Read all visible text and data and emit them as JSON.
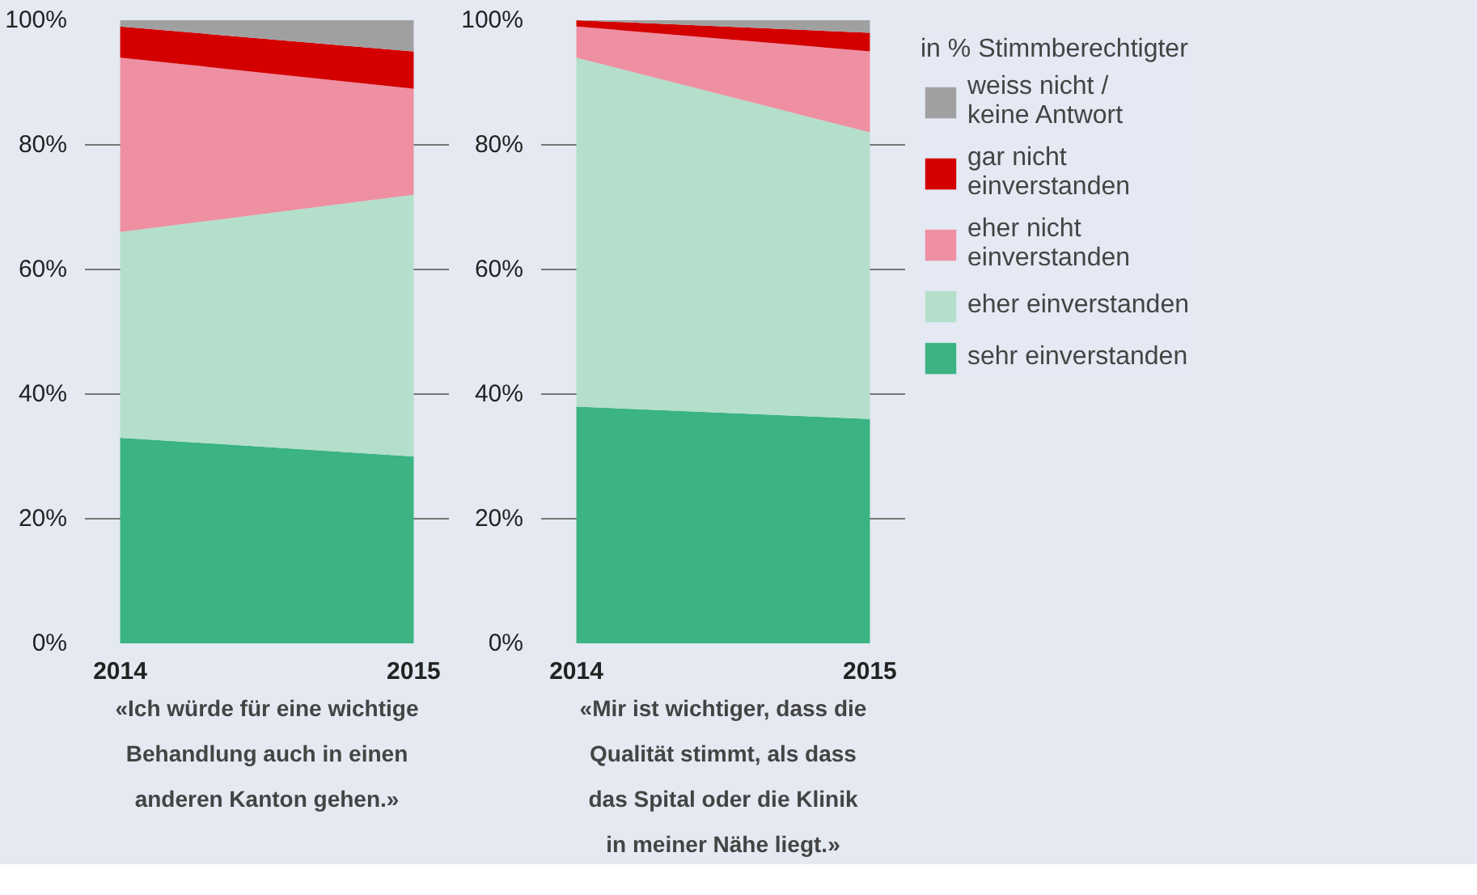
{
  "chart_data": [
    {
      "type": "area",
      "stacked": true,
      "categories": [
        "2014",
        "2015"
      ],
      "ylim": [
        0,
        100
      ],
      "yticks": [
        {
          "value": 0,
          "label": "0%"
        },
        {
          "value": 20,
          "label": "20%"
        },
        {
          "value": 40,
          "label": "40%"
        },
        {
          "value": 60,
          "label": "60%"
        },
        {
          "value": 80,
          "label": "80%"
        },
        {
          "value": 100,
          "label": "100%"
        }
      ],
      "grid": "y",
      "legend": false,
      "series": [
        {
          "color": "#3bb383",
          "values": [
            33,
            30
          ]
        },
        {
          "color": "#b3dfcb",
          "values": [
            33,
            42
          ]
        },
        {
          "color": "#ee8fa2",
          "values": [
            28,
            17
          ]
        },
        {
          "color": "#d40000",
          "values": [
            5,
            6
          ]
        },
        {
          "color": "#a0a0a0",
          "values": [
            1,
            5
          ]
        }
      ],
      "annotations": [
        "«Ich würde für eine wichtige Behandlung auch in einen anderen Kanton gehen.»"
      ]
    },
    {
      "type": "area",
      "stacked": true,
      "categories": [
        "2014",
        "2015"
      ],
      "ylim": [
        0,
        100
      ],
      "yticks": [
        {
          "value": 0,
          "label": "0%"
        },
        {
          "value": 20,
          "label": "20%"
        },
        {
          "value": 40,
          "label": "40%"
        },
        {
          "value": 60,
          "label": "60%"
        },
        {
          "value": 80,
          "label": "80%"
        },
        {
          "value": 100,
          "label": "100%"
        }
      ],
      "grid": "y",
      "legend": "right",
      "legend_title": "in % Stimmberechtigter",
      "series": [
        {
          "name": "sehr einverstanden",
          "color": "#3bb383",
          "values": [
            38,
            36
          ]
        },
        {
          "name": "eher einverstanden",
          "color": "#b3dfcb",
          "values": [
            56,
            46
          ]
        },
        {
          "name": "eher nicht einverstanden",
          "color": "#ee8fa2",
          "values": [
            5,
            13
          ]
        },
        {
          "name": "gar nicht einverstanden",
          "color": "#d40000",
          "values": [
            1,
            3
          ]
        },
        {
          "name": "weiss nicht / keine Antwort",
          "color": "#a0a0a0",
          "values": [
            0,
            2
          ]
        }
      ],
      "annotations": [
        "«Mir ist wichtiger, dass die Qualität stimmt, als dass das Spital oder die Klinik in meiner Nähe liegt.»"
      ]
    }
  ]
}
